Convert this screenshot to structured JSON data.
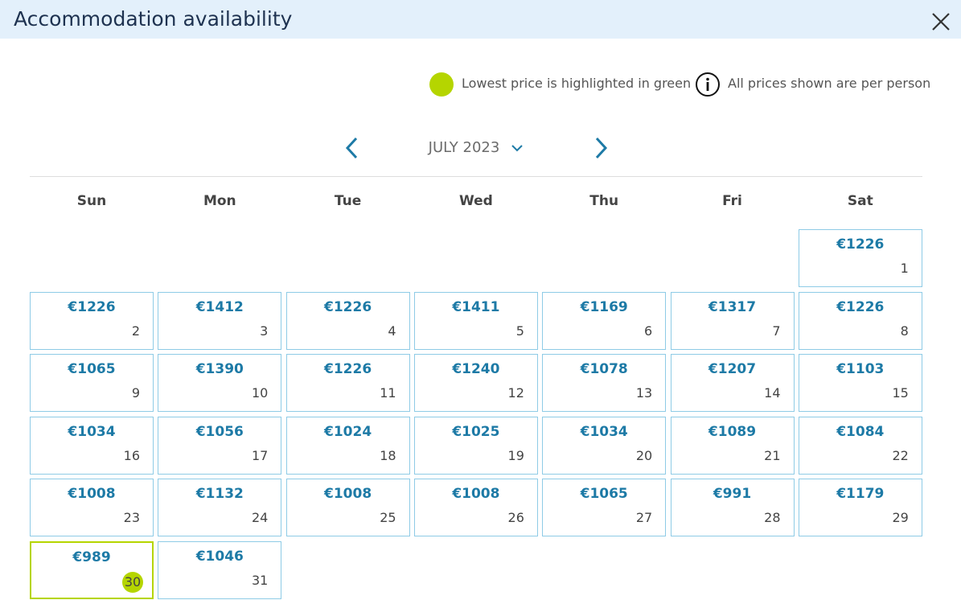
{
  "header": {
    "title": "Accommodation availability"
  },
  "legend": {
    "lowest": "Lowest price is highlighted in green",
    "per_person": "All prices shown are per person"
  },
  "calendar": {
    "month": "JULY 2023",
    "weekdays": [
      "Sun",
      "Mon",
      "Tue",
      "Wed",
      "Thu",
      "Fri",
      "Sat"
    ],
    "days": [
      {
        "day": 1,
        "price": "€1226"
      },
      {
        "day": 2,
        "price": "€1226"
      },
      {
        "day": 3,
        "price": "€1412"
      },
      {
        "day": 4,
        "price": "€1226"
      },
      {
        "day": 5,
        "price": "€1411"
      },
      {
        "day": 6,
        "price": "€1169"
      },
      {
        "day": 7,
        "price": "€1317"
      },
      {
        "day": 8,
        "price": "€1226"
      },
      {
        "day": 9,
        "price": "€1065"
      },
      {
        "day": 10,
        "price": "€1390"
      },
      {
        "day": 11,
        "price": "€1226"
      },
      {
        "day": 12,
        "price": "€1240"
      },
      {
        "day": 13,
        "price": "€1078"
      },
      {
        "day": 14,
        "price": "€1207"
      },
      {
        "day": 15,
        "price": "€1103"
      },
      {
        "day": 16,
        "price": "€1034"
      },
      {
        "day": 17,
        "price": "€1056"
      },
      {
        "day": 18,
        "price": "€1024"
      },
      {
        "day": 19,
        "price": "€1025"
      },
      {
        "day": 20,
        "price": "€1034"
      },
      {
        "day": 21,
        "price": "€1089"
      },
      {
        "day": 22,
        "price": "€1084"
      },
      {
        "day": 23,
        "price": "€1008"
      },
      {
        "day": 24,
        "price": "€1132"
      },
      {
        "day": 25,
        "price": "€1008"
      },
      {
        "day": 26,
        "price": "€1008"
      },
      {
        "day": 27,
        "price": "€1065"
      },
      {
        "day": 28,
        "price": "€991"
      },
      {
        "day": 29,
        "price": "€1179"
      },
      {
        "day": 30,
        "price": "€989"
      },
      {
        "day": 31,
        "price": "€1046"
      }
    ]
  }
}
